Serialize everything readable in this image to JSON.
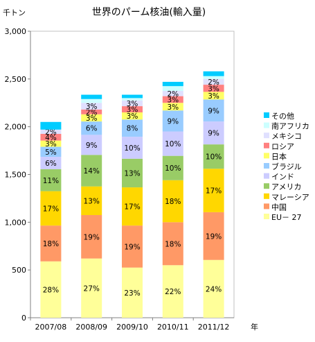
{
  "chart_data": {
    "type": "bar",
    "stacked": true,
    "title": "世界のパーム核油(輸入量)",
    "ylabel": "千トン",
    "xlabel": "年",
    "ylim": [
      0,
      3000
    ],
    "yticks": [
      0,
      500,
      1000,
      1500,
      2000,
      2500,
      3000
    ],
    "ytick_labels": [
      "0",
      "500",
      "1,000",
      "1,500",
      "2,000",
      "2,500",
      "3,000"
    ],
    "grid": false,
    "legend_position": "right",
    "categories": [
      "2007/08",
      "2008/09",
      "2009/10",
      "2010/11",
      "2011/12"
    ],
    "series": [
      {
        "name": "EU－ 27",
        "color": "#ffff99",
        "values": [
          590,
          620,
          525,
          550,
          605
        ],
        "labels": [
          "28%",
          "27%",
          "23%",
          "22%",
          "24%"
        ]
      },
      {
        "name": "中国",
        "color": "#ff9966",
        "values": [
          375,
          455,
          440,
          450,
          500
        ],
        "labels": [
          "18%",
          "19%",
          "19%",
          "18%",
          "19%"
        ]
      },
      {
        "name": "マレーシア",
        "color": "#ffd700",
        "values": [
          360,
          300,
          400,
          440,
          455
        ],
        "labels": [
          "17%",
          "13%",
          "17%",
          "18%",
          "17%"
        ]
      },
      {
        "name": "アメリカ",
        "color": "#99cc66",
        "values": [
          230,
          330,
          300,
          255,
          255
        ],
        "labels": [
          "11%",
          "14%",
          "13%",
          "10%",
          "10%"
        ]
      },
      {
        "name": "インド",
        "color": "#ccccff",
        "values": [
          130,
          210,
          230,
          255,
          240
        ],
        "labels": [
          "6%",
          "9%",
          "10%",
          "10%",
          "9%"
        ]
      },
      {
        "name": "ブラジル",
        "color": "#99ccff",
        "values": [
          105,
          140,
          180,
          220,
          230
        ],
        "labels": [
          "5%",
          "6%",
          "8%",
          "9%",
          "9%"
        ]
      },
      {
        "name": "日本",
        "color": "#ffff66",
        "values": [
          65,
          75,
          75,
          80,
          80
        ],
        "labels": [
          "3%",
          "3%",
          "3%",
          "3%",
          "3%"
        ]
      },
      {
        "name": "ロシア",
        "color": "#ff8080",
        "values": [
          70,
          50,
          65,
          70,
          75
        ],
        "labels": [
          "4%",
          "2%",
          "3%",
          "3%",
          "3%"
        ]
      },
      {
        "name": "メキシコ",
        "color": "#e0e0ff",
        "values": [
          45,
          70,
          60,
          55,
          60
        ],
        "labels": [
          "2%",
          "3%",
          "3%",
          "2%",
          "2%"
        ]
      },
      {
        "name": "南アフリカ",
        "color": "#ccffff",
        "values": [
          0,
          40,
          25,
          50,
          30
        ],
        "labels": [
          "",
          "",
          "",
          "",
          ""
        ]
      },
      {
        "name": "その他",
        "color": "#00ccff",
        "values": [
          80,
          45,
          35,
          45,
          50
        ],
        "labels": [
          "",
          "",
          "",
          "",
          ""
        ]
      }
    ]
  }
}
